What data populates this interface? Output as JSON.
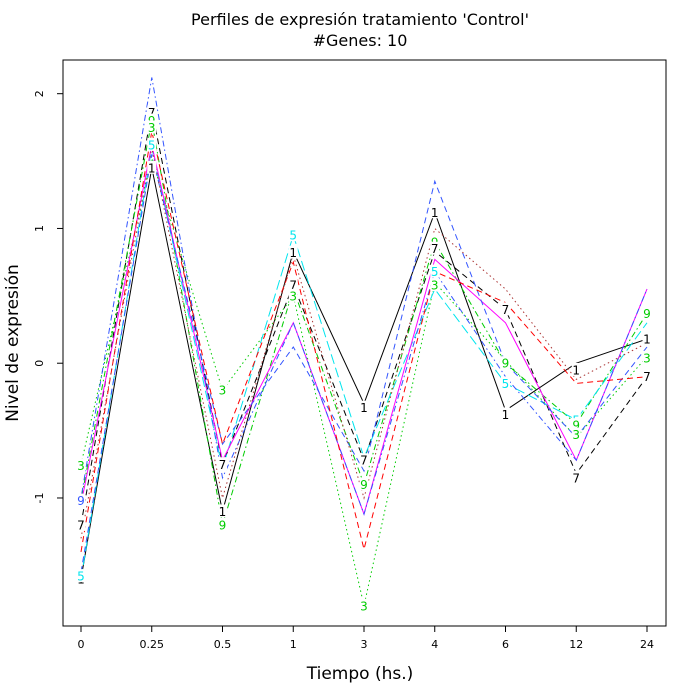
{
  "chart_data": {
    "type": "line",
    "title": "Perfiles de expresión tratamiento 'Control'",
    "subtitle": "#Genes: 10",
    "xlabel": "Tiempo (hs.)",
    "ylabel": "Nivel de expresión",
    "categories": [
      "0",
      "0.25",
      "0.5",
      "1",
      "3",
      "4",
      "6",
      "12",
      "24"
    ],
    "y_ticks": [
      "-1",
      "0",
      "1",
      "2"
    ],
    "ylim": [
      -1.95,
      2.25
    ],
    "grid": false,
    "series": [
      {
        "label": "1",
        "color": "#000000",
        "dash": "solid",
        "values": [
          -1.6,
          1.45,
          -1.1,
          0.83,
          -0.3,
          1.12,
          -0.35,
          0.0,
          0.18
        ]
      },
      {
        "label": "7",
        "color": "#000000",
        "dash": "dashed",
        "values": [
          -1.2,
          1.88,
          -0.75,
          0.58,
          -0.72,
          0.83,
          0.4,
          -0.82,
          -0.1
        ]
      },
      {
        "label": "3",
        "color": "#00cc00",
        "dash": "dotted",
        "values": [
          -0.75,
          1.52,
          -0.2,
          0.5,
          -1.8,
          0.6,
          0.02,
          -0.55,
          0.05
        ]
      },
      {
        "label": "9",
        "color": "#00cc00",
        "dash": "dotdash",
        "values": [
          -1.02,
          1.8,
          -1.2,
          0.55,
          -0.9,
          0.9,
          0.0,
          -0.45,
          0.37
        ]
      },
      {
        "label": "5",
        "color": "#00e5ee",
        "dash": "longdash",
        "values": [
          -1.6,
          1.6,
          -0.78,
          0.95,
          -0.7,
          0.55,
          -0.15,
          -0.42,
          0.3
        ]
      },
      {
        "label": "",
        "color": "#ff00ff",
        "dash": "solid",
        "values": [
          -1.05,
          1.62,
          -0.72,
          0.3,
          -1.12,
          0.77,
          0.3,
          -0.72,
          0.55
        ]
      },
      {
        "label": "",
        "color": "#3355ff",
        "dash": "dashed",
        "values": [
          -1.55,
          1.55,
          -0.6,
          0.12,
          -0.8,
          1.35,
          0.0,
          -0.55,
          0.12
        ]
      },
      {
        "label": "",
        "color": "#3355ff",
        "dash": "dotdash",
        "values": [
          -1.0,
          2.12,
          -0.85,
          0.3,
          -1.12,
          0.68,
          -0.1,
          -0.72,
          0.55
        ]
      },
      {
        "label": "",
        "color": "#ff0000",
        "dash": "dashed",
        "values": [
          -1.4,
          1.72,
          -0.6,
          0.75,
          -1.38,
          0.68,
          0.45,
          -0.15,
          -0.1
        ]
      },
      {
        "label": "",
        "color": "#aa3333",
        "dash": "dotted",
        "values": [
          -1.3,
          1.6,
          -1.0,
          0.8,
          -1.0,
          1.0,
          0.55,
          -0.12,
          0.15
        ]
      }
    ],
    "point_labels": [
      {
        "text": "1",
        "color": "#000000",
        "x": "0",
        "y": -1.6
      },
      {
        "text": "7",
        "color": "#000000",
        "x": "0",
        "y": -1.2
      },
      {
        "text": "9",
        "color": "#3355ff",
        "x": "0",
        "y": -1.02
      },
      {
        "text": "3",
        "color": "#00cc00",
        "x": "0",
        "y": -0.76
      },
      {
        "text": "5",
        "color": "#00e5ee",
        "x": "0",
        "y": -1.58
      },
      {
        "text": "7",
        "color": "#000000",
        "x": "0.25",
        "y": 1.86
      },
      {
        "text": "9",
        "color": "#00cc00",
        "x": "0.25",
        "y": 1.8
      },
      {
        "text": "3",
        "color": "#00cc00",
        "x": "0.25",
        "y": 1.75
      },
      {
        "text": "5",
        "color": "#00e5ee",
        "x": "0.25",
        "y": 1.62
      },
      {
        "text": "1",
        "color": "#000000",
        "x": "0.25",
        "y": 1.45
      },
      {
        "text": "3",
        "color": "#00cc00",
        "x": "0.5",
        "y": -0.2
      },
      {
        "text": "7",
        "color": "#000000",
        "x": "0.5",
        "y": -0.75
      },
      {
        "text": "1",
        "color": "#000000",
        "x": "0.5",
        "y": -1.1
      },
      {
        "text": "9",
        "color": "#00cc00",
        "x": "0.5",
        "y": -1.2
      },
      {
        "text": "5",
        "color": "#00e5ee",
        "x": "1",
        "y": 0.95
      },
      {
        "text": "1",
        "color": "#000000",
        "x": "1",
        "y": 0.82
      },
      {
        "text": "7",
        "color": "#000000",
        "x": "1",
        "y": 0.58
      },
      {
        "text": "3",
        "color": "#00cc00",
        "x": "1",
        "y": 0.5
      },
      {
        "text": "1",
        "color": "#000000",
        "x": "3",
        "y": -0.33
      },
      {
        "text": "7",
        "color": "#000000",
        "x": "3",
        "y": -0.72
      },
      {
        "text": "9",
        "color": "#00cc00",
        "x": "3",
        "y": -0.9
      },
      {
        "text": "3",
        "color": "#00cc00",
        "x": "3",
        "y": -1.8
      },
      {
        "text": "1",
        "color": "#000000",
        "x": "4",
        "y": 1.12
      },
      {
        "text": "9",
        "color": "#00cc00",
        "x": "4",
        "y": 0.9
      },
      {
        "text": "7",
        "color": "#000000",
        "x": "4",
        "y": 0.85
      },
      {
        "text": "5",
        "color": "#00e5ee",
        "x": "4",
        "y": 0.68
      },
      {
        "text": "3",
        "color": "#00cc00",
        "x": "4",
        "y": 0.58
      },
      {
        "text": "7",
        "color": "#000000",
        "x": "6",
        "y": 0.4
      },
      {
        "text": "9",
        "color": "#00cc00",
        "x": "6",
        "y": 0.0
      },
      {
        "text": "5",
        "color": "#00e5ee",
        "x": "6",
        "y": -0.15
      },
      {
        "text": "1",
        "color": "#000000",
        "x": "6",
        "y": -0.38
      },
      {
        "text": "1",
        "color": "#000000",
        "x": "12",
        "y": -0.05
      },
      {
        "text": "5",
        "color": "#00e5ee",
        "x": "12",
        "y": -0.42
      },
      {
        "text": "9",
        "color": "#00cc00",
        "x": "12",
        "y": -0.46
      },
      {
        "text": "3",
        "color": "#00cc00",
        "x": "12",
        "y": -0.53
      },
      {
        "text": "7",
        "color": "#000000",
        "x": "12",
        "y": -0.85
      },
      {
        "text": "9",
        "color": "#00cc00",
        "x": "24",
        "y": 0.37
      },
      {
        "text": "1",
        "color": "#000000",
        "x": "24",
        "y": 0.18
      },
      {
        "text": "3",
        "color": "#00cc00",
        "x": "24",
        "y": 0.04
      },
      {
        "text": "7",
        "color": "#000000",
        "x": "24",
        "y": -0.1
      }
    ]
  }
}
